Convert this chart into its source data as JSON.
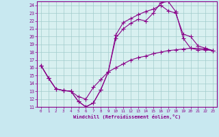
{
  "xlabel": "Windchill (Refroidissement éolien,°C)",
  "xlim": [
    -0.5,
    23.5
  ],
  "ylim": [
    11,
    24.5
  ],
  "xticks": [
    0,
    1,
    2,
    3,
    4,
    5,
    6,
    7,
    8,
    9,
    10,
    11,
    12,
    13,
    14,
    15,
    16,
    17,
    18,
    19,
    20,
    21,
    22,
    23
  ],
  "yticks": [
    11,
    12,
    13,
    14,
    15,
    16,
    17,
    18,
    19,
    20,
    21,
    22,
    23,
    24
  ],
  "line_color": "#880088",
  "bg_color": "#c8e8f0",
  "plot_bg": "#d8f0f0",
  "grid_color": "#a0cccc",
  "line1_x": [
    0,
    1,
    2,
    3,
    4,
    5,
    6,
    7,
    8,
    9,
    10,
    11,
    12,
    13,
    14,
    15,
    16,
    17,
    18,
    19,
    20,
    21,
    22,
    23
  ],
  "line1_y": [
    16.3,
    14.7,
    13.3,
    13.1,
    13.0,
    11.7,
    11.0,
    11.5,
    13.2,
    15.5,
    19.8,
    21.0,
    21.7,
    22.2,
    22.0,
    23.0,
    24.3,
    24.5,
    23.2,
    19.8,
    18.5,
    18.3,
    18.3,
    18.2
  ],
  "line2_x": [
    0,
    1,
    2,
    3,
    4,
    5,
    6,
    7,
    8,
    9,
    10,
    11,
    12,
    13,
    14,
    15,
    16,
    17,
    18,
    19,
    20,
    21,
    22,
    23
  ],
  "line2_y": [
    16.3,
    14.7,
    13.3,
    13.1,
    13.0,
    11.7,
    11.0,
    11.5,
    13.2,
    15.5,
    20.2,
    21.8,
    22.3,
    22.8,
    23.2,
    23.5,
    24.0,
    23.3,
    23.0,
    20.3,
    20.0,
    18.8,
    18.5,
    18.2
  ],
  "line3_x": [
    0,
    1,
    2,
    3,
    4,
    5,
    6,
    7,
    8,
    9,
    10,
    11,
    12,
    13,
    14,
    15,
    16,
    17,
    18,
    19,
    20,
    21,
    22,
    23
  ],
  "line3_y": [
    16.3,
    14.7,
    13.3,
    13.1,
    13.0,
    12.3,
    12.0,
    13.5,
    14.5,
    15.5,
    16.0,
    16.5,
    17.0,
    17.3,
    17.5,
    17.8,
    18.0,
    18.2,
    18.3,
    18.4,
    18.5,
    18.5,
    18.4,
    18.2
  ]
}
